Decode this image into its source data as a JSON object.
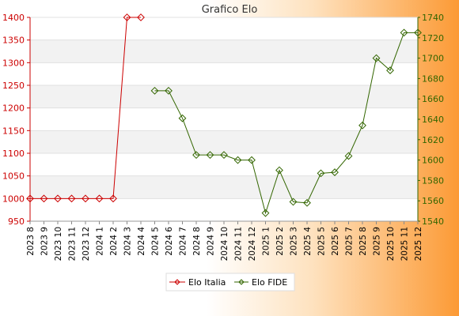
{
  "chart_data": {
    "type": "line",
    "title": "Grafico Elo",
    "categories": [
      "2023 8",
      "2023 9",
      "2023 10",
      "2023 11",
      "2023 12",
      "2024 1",
      "2024 2",
      "2024 3",
      "2024 4",
      "2024 5",
      "2024 6",
      "2024 7",
      "2024 8",
      "2024 9",
      "2024 10",
      "2024 11",
      "2024 12",
      "2025 1",
      "2025 2",
      "2025 3",
      "2025 4",
      "2025 5",
      "2025 6",
      "2025 7",
      "2025 8",
      "2025 9",
      "2025 10",
      "2025 11",
      "2025 12"
    ],
    "y_left": {
      "min": 950,
      "max": 1400,
      "ticks": [
        950,
        1000,
        1050,
        1100,
        1150,
        1200,
        1250,
        1300,
        1350,
        1400
      ],
      "color": "#cc0000"
    },
    "y_right": {
      "min": 1540,
      "max": 1740,
      "ticks": [
        1540,
        1560,
        1580,
        1600,
        1620,
        1640,
        1660,
        1680,
        1700,
        1720,
        1740
      ],
      "color": "#336600"
    },
    "grid": true,
    "legend_position": "bottom",
    "series": [
      {
        "name": "Elo Italia",
        "axis": "left",
        "color": "#cc0000",
        "values": [
          1000,
          1000,
          1000,
          1000,
          1000,
          1000,
          1000,
          1400,
          1400,
          null,
          null,
          null,
          null,
          null,
          null,
          null,
          null,
          null,
          null,
          null,
          null,
          null,
          null,
          null,
          null,
          null,
          null,
          null,
          null
        ]
      },
      {
        "name": "Elo FIDE",
        "axis": "right",
        "color": "#336600",
        "values": [
          null,
          null,
          null,
          null,
          null,
          null,
          null,
          null,
          null,
          1668,
          1668,
          1641,
          1605,
          1605,
          1605,
          1600,
          1600,
          1548,
          1590,
          1559,
          1558,
          1587,
          1588,
          1604,
          1634,
          1700,
          1688,
          1725,
          1725
        ]
      }
    ]
  }
}
